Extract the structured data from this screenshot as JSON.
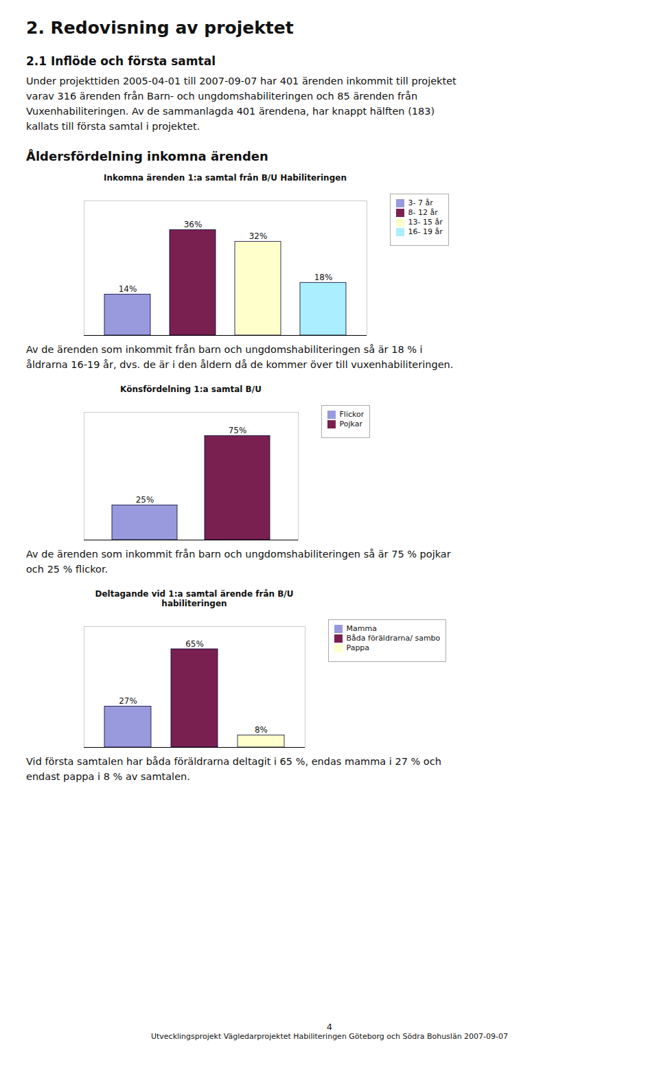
{
  "title": "2.   Redovisning av projektet",
  "subtitle": "2.1   Inflöde och första samtal",
  "text": [
    "Under projekttiden 2005-04-01 till 2007-09-07 har 401 ärenden inkommit till projektet",
    "varav 316 ärenden från Barn- och ungdomshabiliteringen och 85 ärenden från",
    "Vuxenhabiliteringen. Av de sammanlagda 401 ärendena, har knappt hälften (183)",
    "kallats till första samtal i projektet."
  ],
  "heading": "Åldersfördelning inkomna ärenden",
  "chart_data": [
    {
      "type": "bar",
      "title": "Inkomna ärenden 1:a samtal från B/U Habiliteringen",
      "categories": [
        "3- 7 år",
        "8- 12 år",
        "13- 15 år",
        "16- 19 år"
      ],
      "values": [
        14,
        36,
        32,
        18
      ],
      "value_labels": [
        "14%",
        "36%",
        "32%",
        "18%"
      ],
      "colors": [
        "#9999dd",
        "#7a2050",
        "#ffffcc",
        "#aaeeff"
      ],
      "ylim": [
        0,
        46
      ],
      "data_labels": true,
      "tick_labels": false,
      "legend": "right",
      "annotations": [
        "Av de ärenden som inkommit från barn och ungdomshabiliteringen så är 18 % i",
        "åldrarna 16-19 år, dvs. de är i den åldern då de kommer över till vuxenhabiliteringen."
      ]
    },
    {
      "type": "bar",
      "title": "Könsfördelning 1:a samtal B/U",
      "categories": [
        "Flickor",
        "Pojkar"
      ],
      "values": [
        25,
        75
      ],
      "value_labels": [
        "25%",
        "75%"
      ],
      "colors": [
        "#9999dd",
        "#7a2050"
      ],
      "ylim": [
        0,
        92
      ],
      "data_labels": true,
      "tick_labels": false,
      "legend": "right",
      "annotations": [
        "Av de ärenden som inkommit från barn och ungdomshabiliteringen så är 75 % pojkar",
        "och 25 % flickor."
      ]
    },
    {
      "type": "bar",
      "title": "Deltagande vid 1:a samtal ärende från B/U habiliteringen",
      "categories": [
        "Mamma",
        "Båda föräldrarna/ sambo",
        "Pappa"
      ],
      "values": [
        27,
        65,
        8
      ],
      "value_labels": [
        "27%",
        "65%",
        "8%"
      ],
      "colors": [
        "#9999dd",
        "#7a2050",
        "#ffffcc"
      ],
      "ylim": [
        0,
        80
      ],
      "data_labels": true,
      "tick_labels": false,
      "legend": "right",
      "annotations": [
        "Vid första samtalen har båda föräldrarna deltagit i 65 %, endas mamma i 27 % och",
        "endast pappa i 8 % av samtalen."
      ]
    }
  ],
  "caption": [
    "4",
    "Utvecklingsprojekt Vägledarprojektet Habiliteringen Göteborg och Södra Bohuslän 2007-09-07"
  ]
}
